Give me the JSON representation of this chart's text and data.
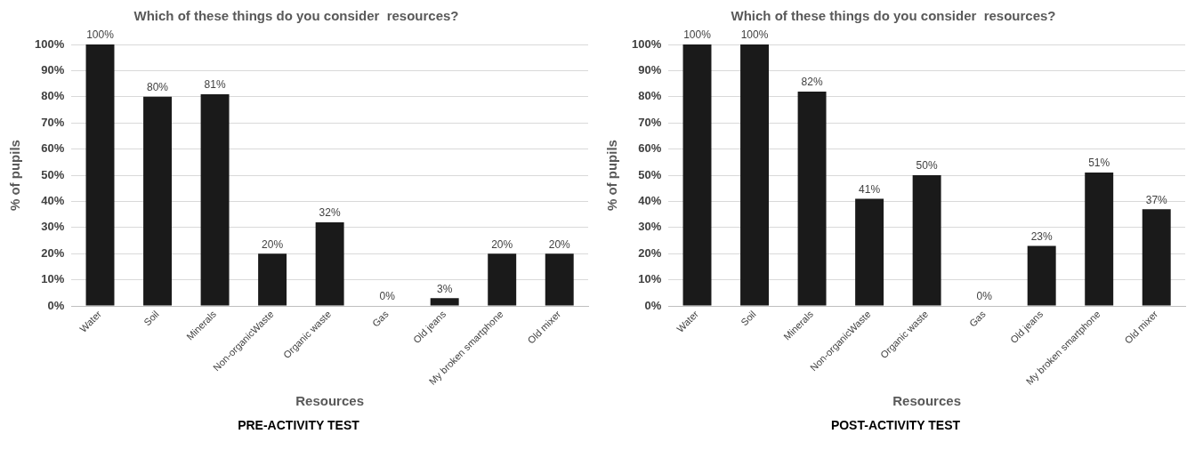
{
  "chart_data": [
    {
      "type": "bar",
      "title": "Which of these things do you consider  resources?",
      "xlabel": "Resources",
      "ylabel": "% of pupils",
      "categories": [
        "Water",
        "Soil",
        "Minerals",
        "Non-organicWaste",
        "Organic waste",
        "Gas",
        "Old jeans",
        "My broken smartphone",
        "Old mixer"
      ],
      "values": [
        100,
        80,
        81,
        20,
        32,
        0,
        3,
        20,
        20
      ],
      "value_labels": [
        "100%",
        "80%",
        "81%",
        "20%",
        "32%",
        "0%",
        "3%",
        "20%",
        "20%"
      ],
      "color": "#1a1a1a",
      "ylim": [
        0,
        100
      ],
      "yticks": [
        {
          "value": 0,
          "label": "0%"
        },
        {
          "value": 10,
          "label": "10%"
        },
        {
          "value": 20,
          "label": "20%"
        },
        {
          "value": 30,
          "label": "30%"
        },
        {
          "value": 40,
          "label": "40%"
        },
        {
          "value": 50,
          "label": "50%"
        },
        {
          "value": 60,
          "label": "60%"
        },
        {
          "value": 70,
          "label": "70%"
        },
        {
          "value": 80,
          "label": "80%"
        },
        {
          "value": 90,
          "label": "90%"
        },
        {
          "value": 100,
          "label": "100%"
        }
      ],
      "grid": "y",
      "legend": false,
      "annotations": [
        "PRE-ACTIVITY TEST"
      ]
    },
    {
      "type": "bar",
      "title": "Which of these things do you consider  resources?",
      "xlabel": "Resources",
      "ylabel": "% of pupils",
      "categories": [
        "Water",
        "Soil",
        "Minerals",
        "Non-organicWaste",
        "Organic waste",
        "Gas",
        "Old jeans",
        "My broken smartphone",
        "Old mixer"
      ],
      "values": [
        100,
        100,
        82,
        41,
        50,
        0,
        23,
        51,
        37
      ],
      "value_labels": [
        "100%",
        "100%",
        "82%",
        "41%",
        "50%",
        "0%",
        "23%",
        "51%",
        "37%"
      ],
      "color": "#1a1a1a",
      "ylim": [
        0,
        100
      ],
      "yticks": [
        {
          "value": 0,
          "label": "0%"
        },
        {
          "value": 10,
          "label": "10%"
        },
        {
          "value": 20,
          "label": "20%"
        },
        {
          "value": 30,
          "label": "30%"
        },
        {
          "value": 40,
          "label": "40%"
        },
        {
          "value": 50,
          "label": "50%"
        },
        {
          "value": 60,
          "label": "60%"
        },
        {
          "value": 70,
          "label": "70%"
        },
        {
          "value": 80,
          "label": "80%"
        },
        {
          "value": 90,
          "label": "90%"
        },
        {
          "value": 100,
          "label": "100%"
        }
      ],
      "grid": "y",
      "legend": false,
      "annotations": [
        "POST-ACTIVITY TEST"
      ]
    }
  ]
}
